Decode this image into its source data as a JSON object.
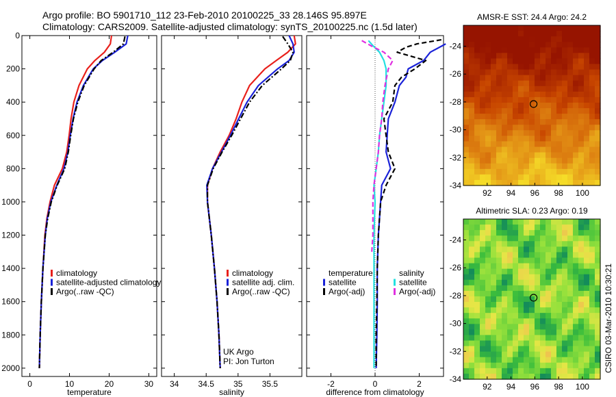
{
  "header": {
    "line1": "Argo profile: BO 5901710_112 23-Feb-2010 20100225_33 28.146S 95.897E",
    "line2": "Climatology: CARS2009. Satellite-adjusted climatology: synTS_20100225.nc (1.5d later)"
  },
  "footer": {
    "vertical_text": "CSIRO 03-Mar-2010 10:30:21",
    "uk_argo": "UK Argo",
    "pi": "PI: Jon Turton"
  },
  "colors": {
    "climatology": "#e8201b",
    "satellite": "#1a22d8",
    "argo": "#000000",
    "cyan": "#22e0e0",
    "magenta": "#e030e0"
  },
  "chart_data": [
    {
      "id": "temperature",
      "type": "line",
      "xlabel": "temperature",
      "ylim": [
        2050,
        0
      ],
      "xlim": [
        -2,
        32
      ],
      "xticks": [
        "0",
        "10",
        "20",
        "30"
      ],
      "xtick_values": [
        0,
        10,
        20,
        30
      ],
      "yticks": [
        "0",
        "200",
        "400",
        "600",
        "800",
        "1000",
        "1200",
        "1400",
        "1600",
        "1800",
        "2000"
      ],
      "ytick_values": [
        0,
        200,
        400,
        600,
        800,
        1000,
        1200,
        1400,
        1600,
        1800,
        2000
      ],
      "legend": [
        "climatology",
        "satellite-adjusted climatology",
        "Argo(..raw -QC)"
      ],
      "series": [
        {
          "name": "climatology",
          "style": "solid",
          "color": "#e8201b",
          "depth": [
            0,
            50,
            100,
            150,
            200,
            300,
            400,
            500,
            600,
            700,
            800,
            900,
            1000,
            1100,
            1200,
            1400,
            1600,
            1800,
            2000
          ],
          "values": [
            20.6,
            20.3,
            18.8,
            16.4,
            14.5,
            12.4,
            11.1,
            10.4,
            9.9,
            9.3,
            8.2,
            6.2,
            5.1,
            4.3,
            3.8,
            3.3,
            2.9,
            2.6,
            2.4
          ]
        },
        {
          "name": "satellite-adjusted climatology",
          "style": "solid",
          "color": "#1a22d8",
          "depth": [
            0,
            50,
            100,
            150,
            200,
            300,
            400,
            500,
            600,
            700,
            800,
            900,
            1000,
            1100,
            1200,
            1400,
            1600,
            1800,
            2000
          ],
          "values": [
            24.7,
            24.3,
            21.4,
            18.3,
            16.0,
            13.5,
            11.9,
            10.9,
            10.2,
            9.6,
            8.6,
            6.8,
            5.3,
            4.4,
            3.9,
            3.3,
            2.9,
            2.6,
            2.4
          ]
        },
        {
          "name": "Argo(..raw -QC)",
          "style": "dashdot",
          "color": "#000000",
          "depth": [
            5,
            50,
            100,
            150,
            200,
            300,
            400,
            500,
            600,
            700,
            800,
            900,
            1000,
            1100,
            1200,
            1400,
            1600,
            1800,
            2000
          ],
          "values": [
            24.0,
            23.6,
            21.0,
            18.0,
            16.2,
            13.7,
            12.1,
            11.0,
            10.3,
            9.7,
            8.8,
            6.9,
            5.4,
            4.5,
            3.9,
            3.3,
            2.9,
            2.6,
            2.4
          ]
        }
      ]
    },
    {
      "id": "salinity",
      "type": "line",
      "xlabel": "salinity",
      "ylim": [
        2050,
        0
      ],
      "xlim": [
        33.8,
        36.0
      ],
      "xticks": [
        "34",
        "34.5",
        "35",
        "35.5"
      ],
      "xtick_values": [
        34.0,
        34.5,
        35.0,
        35.5
      ],
      "legend": [
        "climatology",
        "satellite adj. clim.",
        "Argo(..raw -QC)"
      ],
      "series": [
        {
          "name": "climatology",
          "style": "solid",
          "color": "#e8201b",
          "depth": [
            0,
            50,
            100,
            150,
            200,
            300,
            400,
            500,
            600,
            700,
            800,
            900,
            1000,
            1100,
            1200,
            1400,
            1600,
            1800,
            2000
          ],
          "values": [
            35.88,
            35.9,
            35.78,
            35.6,
            35.42,
            35.18,
            35.06,
            34.97,
            34.86,
            34.72,
            34.6,
            34.52,
            34.52,
            34.55,
            34.58,
            34.63,
            34.67,
            34.7,
            34.72
          ]
        },
        {
          "name": "satellite adj. clim.",
          "style": "solid",
          "color": "#1a22d8",
          "depth": [
            0,
            50,
            100,
            150,
            200,
            300,
            400,
            500,
            600,
            700,
            800,
            900,
            1000,
            1100,
            1200,
            1400,
            1600,
            1800,
            2000
          ],
          "values": [
            35.8,
            35.86,
            35.88,
            35.8,
            35.62,
            35.32,
            35.14,
            35.01,
            34.88,
            34.74,
            34.6,
            34.51,
            34.52,
            34.55,
            34.58,
            34.63,
            34.67,
            34.7,
            34.72
          ]
        },
        {
          "name": "Argo(..raw -QC)",
          "style": "dashdot",
          "color": "#000000",
          "depth": [
            5,
            50,
            100,
            150,
            200,
            300,
            400,
            500,
            600,
            700,
            800,
            900,
            1000,
            1100,
            1200,
            1400,
            1600,
            1800,
            2000
          ],
          "values": [
            35.7,
            35.78,
            35.86,
            35.82,
            35.68,
            35.38,
            35.18,
            35.04,
            34.9,
            34.75,
            34.61,
            34.52,
            34.52,
            34.55,
            34.58,
            34.63,
            34.67,
            34.7,
            34.72
          ]
        }
      ],
      "annotations": [
        "UK Argo",
        "PI: Jon Turton"
      ]
    },
    {
      "id": "difference",
      "type": "line",
      "xlabel": "difference from climatology",
      "ylim": [
        2050,
        0
      ],
      "xlim": [
        -3.1,
        3.1
      ],
      "xticks": [
        "-2",
        "0",
        "2"
      ],
      "xtick_values": [
        -2,
        0,
        2
      ],
      "legend_temperature": [
        "temperature",
        "satellite",
        "Argo(-adj)"
      ],
      "legend_salinity": [
        "salinity",
        "satellite",
        "Argo(-adj)"
      ],
      "series": [
        {
          "name": "temperature satellite",
          "style": "solid",
          "color": "#1a22d8",
          "depth": [
            50,
            100,
            150,
            200,
            250,
            300,
            400,
            500,
            600,
            700,
            800,
            900,
            1000,
            1200,
            1400,
            1600,
            1800,
            2000
          ],
          "values": [
            3.2,
            2.5,
            2.2,
            1.5,
            1.4,
            1.1,
            0.9,
            0.6,
            0.55,
            0.5,
            0.7,
            0.3,
            0.25,
            0.15,
            0.1,
            0.1,
            0.08,
            0.05
          ]
        },
        {
          "name": "temperature Argo(-adj)",
          "style": "dashed",
          "color": "#000000",
          "depth": [
            25,
            50,
            70,
            100,
            150,
            200,
            250,
            300,
            400,
            500,
            600,
            700,
            800,
            900,
            1000,
            1200,
            1400,
            1600,
            1800,
            2000
          ],
          "values": [
            3.0,
            1.9,
            1.4,
            1.0,
            2.3,
            1.8,
            1.2,
            0.9,
            0.8,
            0.4,
            0.5,
            0.6,
            0.9,
            0.5,
            0.25,
            0.15,
            0.1,
            0.08,
            0.05,
            0.05
          ]
        },
        {
          "name": "salinity satellite",
          "style": "solid",
          "color": "#22e0e0",
          "depth": [
            30,
            60,
            100,
            150,
            200,
            300,
            400,
            500,
            600,
            700,
            800,
            900,
            1000,
            1200,
            1400,
            1600,
            1800,
            2000
          ],
          "values": [
            -0.3,
            -0.1,
            0.2,
            0.4,
            0.5,
            0.5,
            0.4,
            0.3,
            0.2,
            0.15,
            0.05,
            -0.05,
            0.0,
            -0.05,
            -0.05,
            -0.05,
            -0.05,
            -0.05
          ]
        },
        {
          "name": "salinity Argo(-adj)",
          "style": "dashed",
          "color": "#e030e0",
          "depth": [
            30,
            60,
            100,
            150,
            200,
            300,
            400,
            500,
            600,
            700,
            800,
            900,
            1000,
            1100,
            1200,
            1300
          ],
          "values": [
            -0.6,
            -0.2,
            0.4,
            0.8,
            0.6,
            0.45,
            0.35,
            0.3,
            0.2,
            0.15,
            0.05,
            -0.05,
            -0.1,
            -0.1,
            -0.1,
            -0.15
          ]
        }
      ]
    },
    {
      "id": "sst_map",
      "type": "heatmap",
      "title": "AMSR-E SST: 24.4 Argo: 24.2",
      "xticks": [
        "92",
        "94",
        "96",
        "98",
        "100"
      ],
      "yticks": [
        "-24",
        "-26",
        "-28",
        "-30",
        "-32",
        "-34"
      ],
      "xlim": [
        90,
        101.5
      ],
      "ylim": [
        -34,
        -22.5
      ],
      "marker": {
        "lon": 95.9,
        "lat": -28.15
      },
      "palette": "warm"
    },
    {
      "id": "sla_map",
      "type": "heatmap",
      "title": "Altimetric SLA: 0.23 Argo: 0.19",
      "xticks": [
        "92",
        "94",
        "96",
        "98",
        "100"
      ],
      "yticks": [
        "-24",
        "-26",
        "-28",
        "-30",
        "-32",
        "-34"
      ],
      "xlim": [
        90,
        101.5
      ],
      "ylim": [
        -34,
        -22.5
      ],
      "marker": {
        "lon": 95.9,
        "lat": -28.15
      },
      "palette": "green-yellow"
    }
  ]
}
